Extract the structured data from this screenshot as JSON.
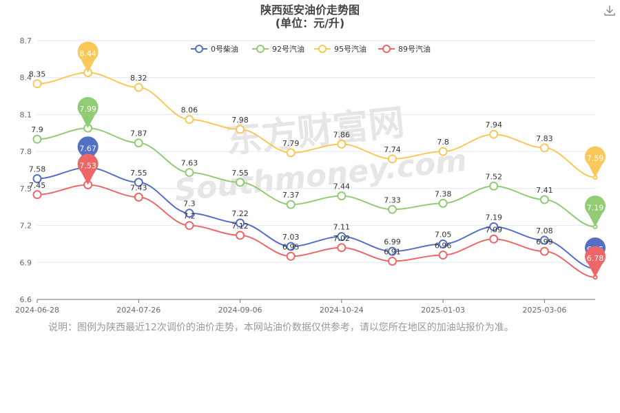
{
  "chart_data": {
    "type": "line",
    "title": "陕西延安油价走势图",
    "subtitle": "(单位：元/升)",
    "x": [
      "2024-06-28",
      "2024-07-12",
      "2024-07-26",
      "2024-08-09",
      "2024-09-06",
      "2024-09-24",
      "2024-10-24",
      "2024-11-20",
      "2025-01-03",
      "2025-01-17",
      "2025-03-06",
      "2025-03-20"
    ],
    "xticks": [
      "2024-06-28",
      "2024-07-26",
      "2024-09-06",
      "2024-10-24",
      "2025-01-03",
      "2025-03-06"
    ],
    "yticks": [
      6.6,
      6.9,
      7.2,
      7.5,
      7.8,
      8.1,
      8.4,
      8.7
    ],
    "ylim": [
      6.6,
      8.7
    ],
    "grid": true,
    "legend_position": "top",
    "series": [
      {
        "name": "0号柴油",
        "color": "#5470c6",
        "values": [
          7.58,
          7.67,
          7.55,
          7.3,
          7.22,
          7.03,
          7.11,
          6.99,
          7.05,
          7.19,
          7.08,
          6.85
        ]
      },
      {
        "name": "92号汽油",
        "color": "#91cc75",
        "values": [
          7.9,
          7.99,
          7.87,
          7.63,
          7.55,
          7.37,
          7.44,
          7.33,
          7.38,
          7.52,
          7.41,
          7.19
        ]
      },
      {
        "name": "95号汽油",
        "color": "#fac858",
        "values": [
          8.35,
          8.44,
          8.32,
          8.06,
          7.98,
          7.79,
          7.86,
          7.74,
          7.8,
          7.94,
          7.83,
          7.59
        ]
      },
      {
        "name": "89号汽油",
        "color": "#ee6666",
        "values": [
          7.45,
          7.53,
          7.43,
          7.2,
          7.12,
          6.95,
          7.02,
          6.91,
          6.96,
          7.09,
          6.99,
          6.78
        ]
      }
    ],
    "markers": {
      "max_index": 1,
      "end_index": 11
    }
  },
  "watermark": {
    "text_cn": "东方财富网",
    "text_en": "Southmoney.com"
  },
  "note": "说明：图例为陕西最近12次调价的油价走势，本网站油价数据仅供参考，请以您所在地区的加油站报价为准。",
  "download_icon": "download-icon"
}
